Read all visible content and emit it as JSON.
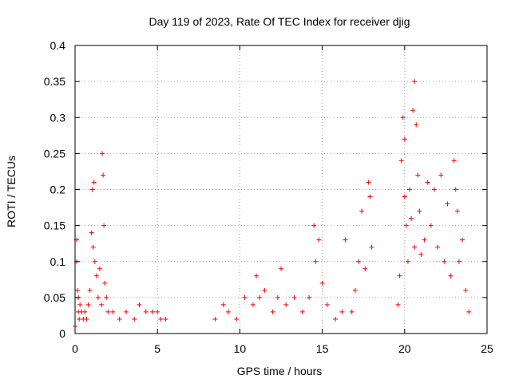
{
  "chart_data": {
    "type": "scatter",
    "title": "Day 119 of 2023, Rate Of TEC Index for receiver djig",
    "xlabel": "GPS time / hours",
    "ylabel": "ROTI / TECUs",
    "xlim": [
      0,
      25
    ],
    "ylim": [
      0,
      0.4
    ],
    "xticks": [
      0,
      5,
      10,
      15,
      20,
      25
    ],
    "yticks": [
      0,
      0.05,
      0.1,
      0.15,
      0.2,
      0.25,
      0.3,
      0.35,
      0.4
    ],
    "grid": true,
    "marker": "+",
    "series": [
      {
        "name": "ROTI",
        "color": "#ff0000",
        "x": [
          0.0,
          0.1,
          0.1,
          0.15,
          0.2,
          0.2,
          0.25,
          0.3,
          0.4,
          0.5,
          0.6,
          0.7,
          0.8,
          0.9,
          1.0,
          1.05,
          1.1,
          1.15,
          1.2,
          1.3,
          1.4,
          1.5,
          1.6,
          1.65,
          1.7,
          1.75,
          1.8,
          1.9,
          2.0,
          2.3,
          2.7,
          3.1,
          3.6,
          3.9,
          4.3,
          4.7,
          5.0,
          5.2,
          5.5,
          8.5,
          9.0,
          9.3,
          9.8,
          10.3,
          10.8,
          11.0,
          11.2,
          11.5,
          12.0,
          12.3,
          12.5,
          12.8,
          13.3,
          13.8,
          14.2,
          14.5,
          14.6,
          14.8,
          15.0,
          15.3,
          15.8,
          16.2,
          16.4,
          16.8,
          17.0,
          17.2,
          17.4,
          17.6,
          17.8,
          17.9,
          18.0,
          19.6,
          19.7,
          19.8,
          19.9,
          20.0,
          20.0,
          20.1,
          20.2,
          20.3,
          20.4,
          20.5,
          20.6,
          20.6,
          20.7,
          20.8,
          20.9,
          21.0,
          21.2,
          21.4,
          21.6,
          21.8,
          22.0,
          22.2,
          22.4,
          22.6,
          22.8,
          23.0,
          23.1,
          23.2,
          23.3,
          23.5,
          23.7,
          23.9
        ],
        "y": [
          0.01,
          0.13,
          0.1,
          0.06,
          0.05,
          0.03,
          0.02,
          0.04,
          0.03,
          0.02,
          0.03,
          0.02,
          0.04,
          0.06,
          0.14,
          0.2,
          0.12,
          0.21,
          0.1,
          0.08,
          0.05,
          0.09,
          0.04,
          0.25,
          0.22,
          0.15,
          0.07,
          0.05,
          0.03,
          0.03,
          0.02,
          0.03,
          0.02,
          0.04,
          0.03,
          0.03,
          0.03,
          0.02,
          0.02,
          0.02,
          0.04,
          0.03,
          0.02,
          0.05,
          0.04,
          0.08,
          0.05,
          0.06,
          0.03,
          0.05,
          0.09,
          0.04,
          0.05,
          0.03,
          0.05,
          0.15,
          0.1,
          0.13,
          0.07,
          0.04,
          0.02,
          0.03,
          0.13,
          0.03,
          0.06,
          0.1,
          0.17,
          0.09,
          0.21,
          0.19,
          0.12,
          0.04,
          0.08,
          0.24,
          0.3,
          0.27,
          0.19,
          0.15,
          0.1,
          0.2,
          0.16,
          0.31,
          0.35,
          0.12,
          0.29,
          0.22,
          0.17,
          0.11,
          0.13,
          0.21,
          0.15,
          0.2,
          0.12,
          0.22,
          0.1,
          0.18,
          0.08,
          0.24,
          0.2,
          0.17,
          0.1,
          0.13,
          0.06,
          0.03
        ]
      }
    ]
  }
}
